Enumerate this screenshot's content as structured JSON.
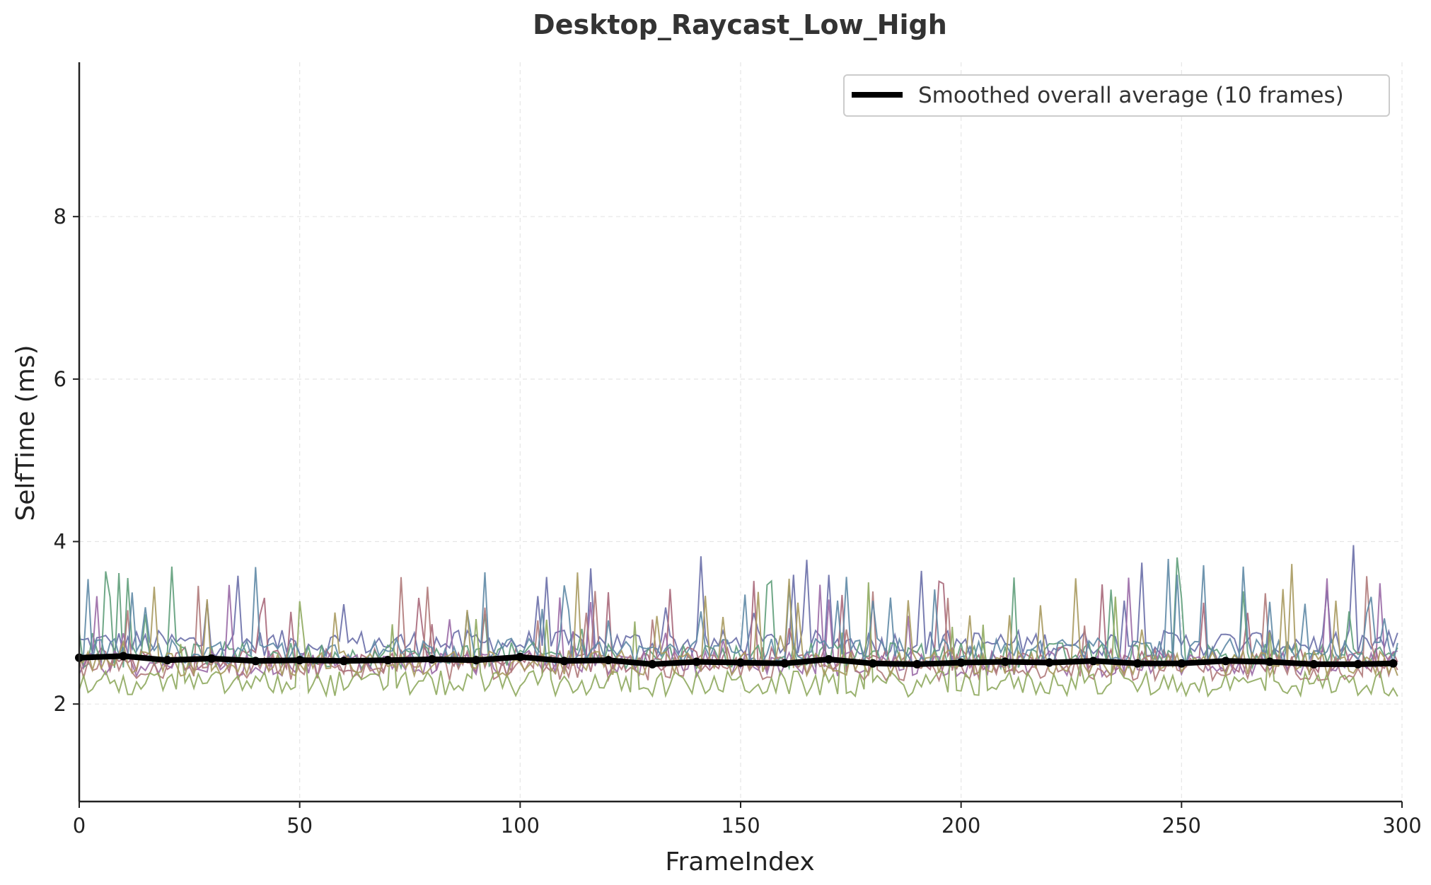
{
  "chart_data": {
    "type": "line",
    "title": "Desktop_Raycast_Low_High",
    "xlabel": "FrameIndex",
    "ylabel": "SelfTime (ms)",
    "xlim": [
      0,
      300
    ],
    "ylim": [
      0.8,
      9.9
    ],
    "x_ticks": [
      0,
      50,
      100,
      150,
      200,
      250,
      300
    ],
    "y_ticks": [
      2,
      4,
      6,
      8
    ],
    "grid": true,
    "legend_position": "top-right",
    "background_series": {
      "count": 8,
      "frames": 300,
      "colors": [
        "#6a6fa8",
        "#a8687a",
        "#5f9e7a",
        "#9a6aa6",
        "#b07a7a",
        "#8faa5f",
        "#5f8aa6",
        "#a89a5f"
      ],
      "approx_means": [
        2.75,
        2.55,
        2.6,
        2.5,
        2.45,
        2.25,
        2.65,
        2.5
      ]
    },
    "series": [
      {
        "name": "Smoothed overall average (10 frames)",
        "color": "#000000",
        "x": [
          0,
          10,
          20,
          30,
          40,
          50,
          60,
          70,
          80,
          90,
          100,
          110,
          120,
          130,
          140,
          150,
          160,
          170,
          180,
          190,
          200,
          210,
          220,
          230,
          240,
          250,
          260,
          270,
          280,
          290,
          298
        ],
        "values": [
          2.57,
          2.59,
          2.54,
          2.56,
          2.53,
          2.54,
          2.53,
          2.54,
          2.55,
          2.54,
          2.58,
          2.53,
          2.54,
          2.49,
          2.52,
          2.51,
          2.5,
          2.55,
          2.5,
          2.49,
          2.51,
          2.52,
          2.51,
          2.53,
          2.5,
          2.5,
          2.53,
          2.52,
          2.49,
          2.49,
          2.5
        ]
      }
    ]
  }
}
